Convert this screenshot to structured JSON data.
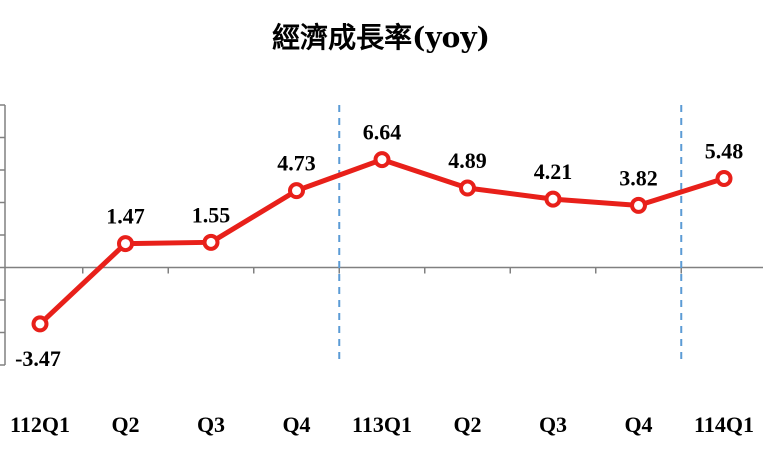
{
  "chart_data": {
    "type": "line",
    "title": "經濟成長率(yoy)",
    "categories": [
      "112Q1",
      "Q2",
      "Q3",
      "Q4",
      "113Q1",
      "Q2",
      "Q3",
      "Q4",
      "114Q1"
    ],
    "series": [
      {
        "values": [
          -3.47,
          1.47,
          1.55,
          4.73,
          6.64,
          4.89,
          4.21,
          3.82,
          5.48
        ],
        "color": "#e8201a"
      }
    ],
    "data_labels": [
      "-3.47",
      "1.47",
      "1.55",
      "4.73",
      "6.64",
      "4.89",
      "4.21",
      "3.82",
      "5.48"
    ],
    "ylim": [
      -6,
      10
    ],
    "y_tick_step": 2,
    "year_dividers_after_category_index": [
      3,
      7
    ],
    "colors": {
      "axis": "#808080",
      "divider": "#5b9bd5",
      "marker_fill": "#ffffff"
    }
  }
}
